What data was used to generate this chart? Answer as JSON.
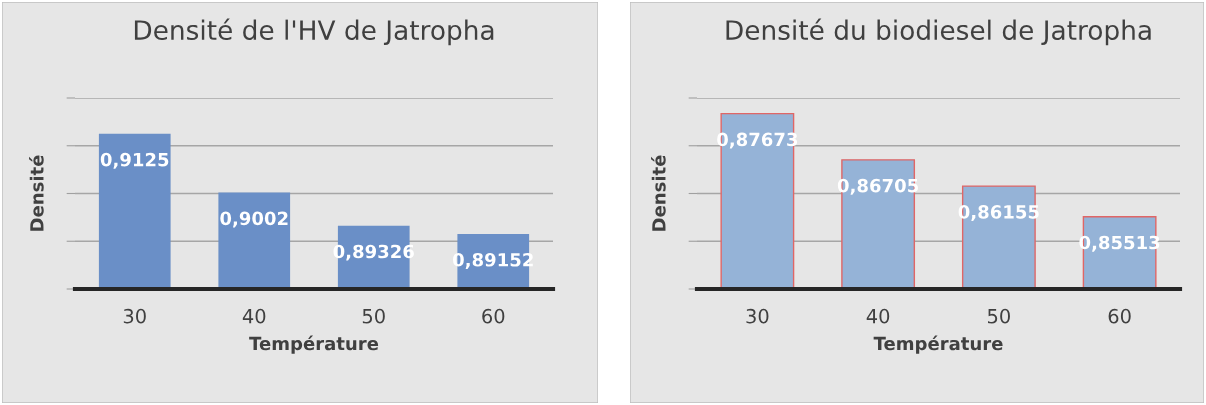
{
  "chart_data": [
    {
      "type": "bar",
      "title": "Densité de l'HV de Jatropha",
      "xlabel": "Température",
      "ylabel": "Densité",
      "categories": [
        "30",
        "40",
        "50",
        "60"
      ],
      "values": [
        0.9125,
        0.9002,
        0.89326,
        0.89152
      ],
      "value_labels": [
        "0,9125",
        "0,9002",
        "0,89326",
        "0,89152"
      ],
      "color": "#6a8fc7",
      "ylim": [
        0.88,
        0.92
      ],
      "yticks": [
        {
          "value": 0.88,
          "label": null
        },
        {
          "value": 0.89,
          "label": null
        },
        {
          "value": 0.9,
          "label": null
        },
        {
          "value": 0.91,
          "label": null
        },
        {
          "value": 0.92,
          "label": null
        }
      ],
      "grid": "y",
      "tick_labels": "x"
    },
    {
      "type": "bar",
      "title": "Densité du biodiesel de Jatropha",
      "xlabel": "Température",
      "ylabel": "Densité",
      "categories": [
        "30",
        "40",
        "50",
        "60"
      ],
      "values": [
        0.87673,
        0.86705,
        0.86155,
        0.85513
      ],
      "value_labels": [
        "0,87673",
        "0,86705",
        "0,86155",
        "0,85513"
      ],
      "color": "#95b3d7",
      "ylim": [
        0.84,
        0.88
      ],
      "yticks": [
        {
          "value": 0.84,
          "label": null
        },
        {
          "value": 0.85,
          "label": null
        },
        {
          "value": 0.86,
          "label": null
        },
        {
          "value": 0.87,
          "label": null
        },
        {
          "value": 0.88,
          "label": null
        }
      ],
      "grid": "y",
      "tick_labels": "x"
    }
  ]
}
